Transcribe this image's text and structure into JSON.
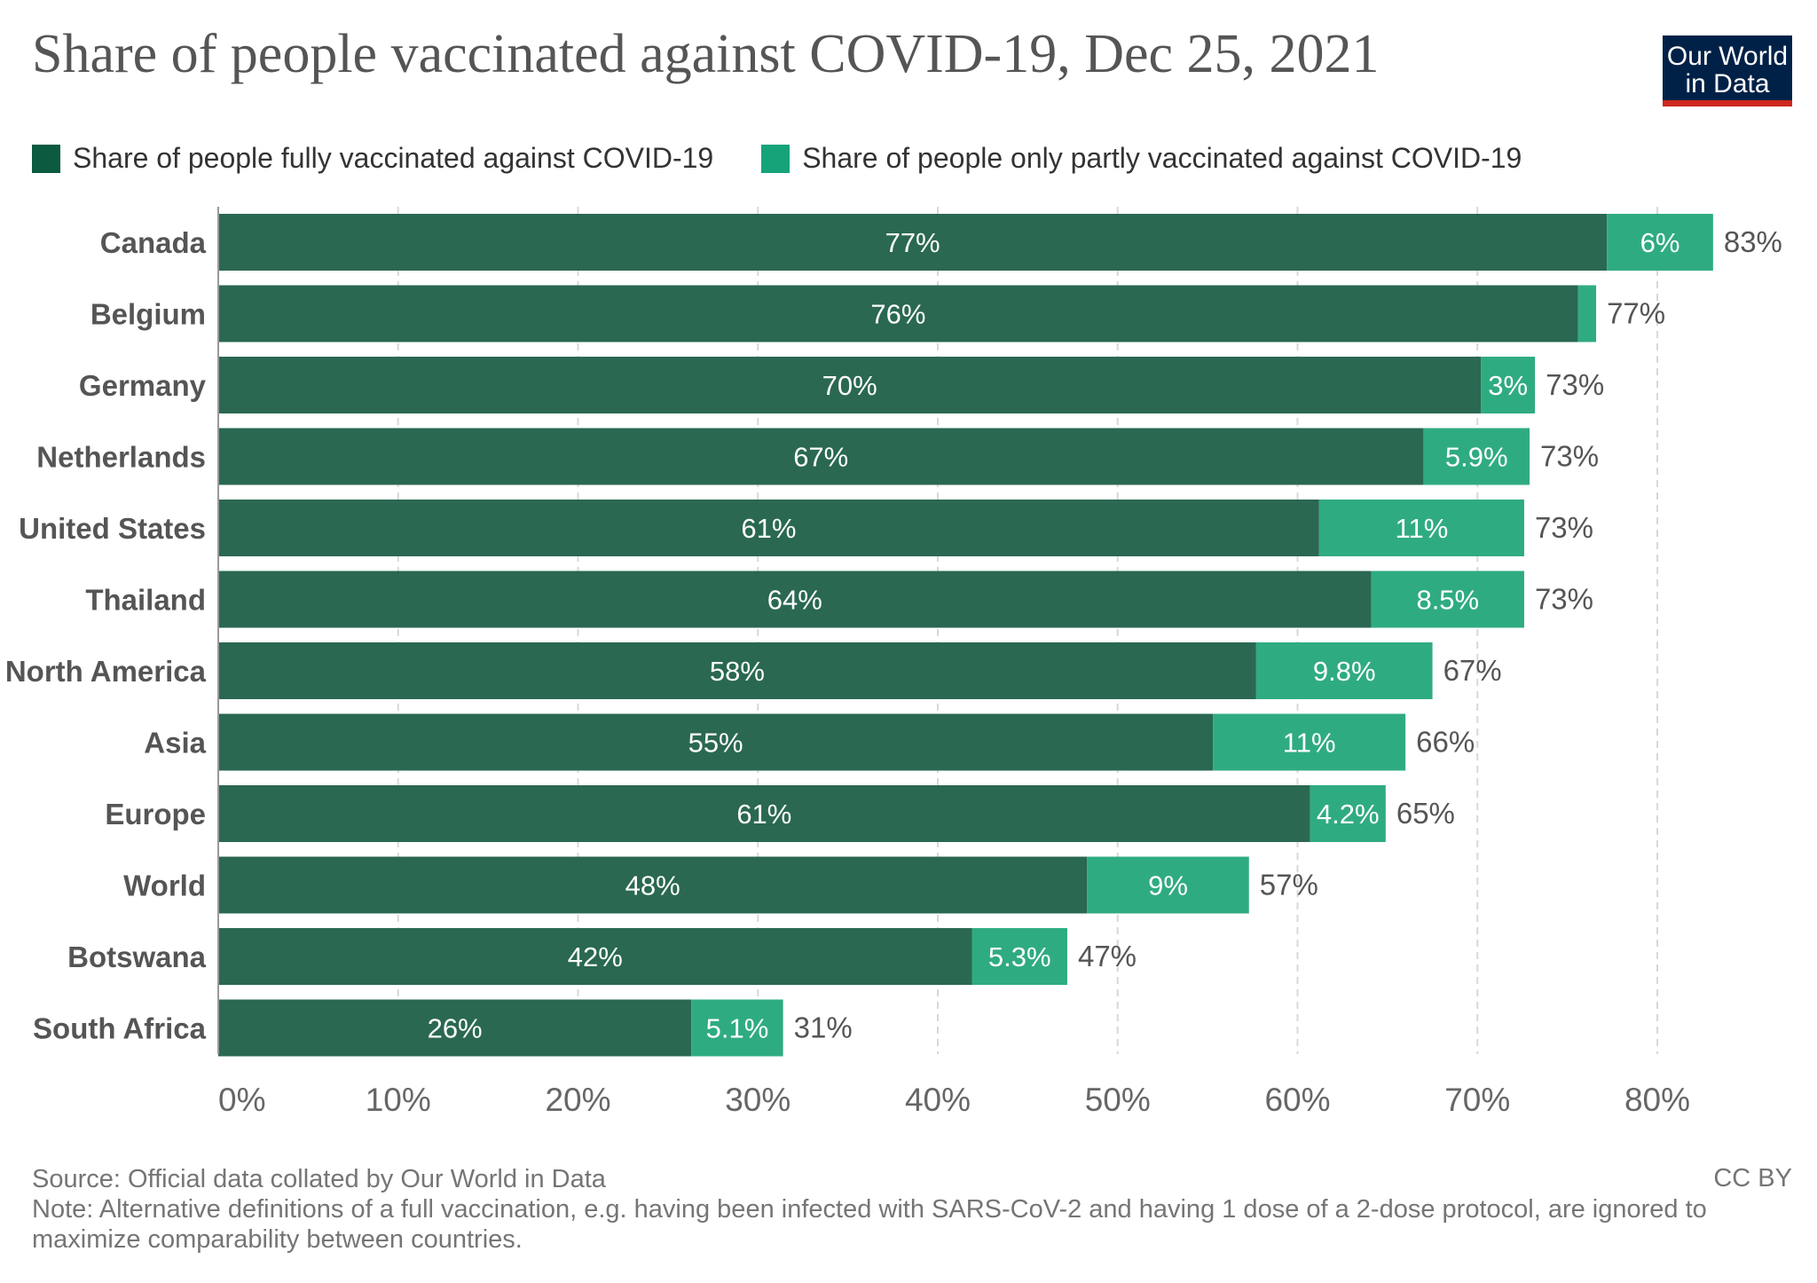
{
  "header": {
    "title": "Share of people vaccinated against COVID-19, Dec 25, 2021",
    "logo_line1": "Our World",
    "logo_line2": "in Data"
  },
  "colors": {
    "fully": "#2a6851",
    "partly": "#2fab82",
    "fully_swatch": "#0c5a3f",
    "partly_swatch": "#16a37a",
    "grid": "#d8d8d8",
    "axis_text": "#666666"
  },
  "chart_data": {
    "type": "bar",
    "orientation": "horizontal",
    "stacked": true,
    "categories": [
      "Canada",
      "Belgium",
      "Germany",
      "Netherlands",
      "United States",
      "Thailand",
      "North America",
      "Asia",
      "Europe",
      "World",
      "Botswana",
      "South Africa"
    ],
    "series": [
      {
        "name": "Share of people fully vaccinated against COVID-19",
        "values": [
          77.2,
          75.6,
          70.2,
          67.0,
          61.2,
          64.1,
          57.7,
          55.3,
          60.7,
          48.3,
          41.9,
          26.3
        ],
        "labels": [
          "77%",
          "76%",
          "70%",
          "67%",
          "61%",
          "64%",
          "58%",
          "55%",
          "61%",
          "48%",
          "42%",
          "26%"
        ]
      },
      {
        "name": "Share of people only partly vaccinated against COVID-19",
        "values": [
          5.9,
          1.0,
          3.0,
          5.9,
          11.4,
          8.5,
          9.8,
          10.7,
          4.2,
          9.0,
          5.3,
          5.1
        ],
        "labels": [
          "6%",
          "",
          "3%",
          "5.9%",
          "11%",
          "8.5%",
          "9.8%",
          "11%",
          "4.2%",
          "9%",
          "5.3%",
          "5.1%"
        ]
      }
    ],
    "totals": [
      "83%",
      "77%",
      "73%",
      "73%",
      "73%",
      "73%",
      "67%",
      "66%",
      "65%",
      "57%",
      "47%",
      "31%"
    ],
    "x_ticks": [
      "0%",
      "10%",
      "20%",
      "30%",
      "40%",
      "50%",
      "60%",
      "70%",
      "80%"
    ],
    "xlim": [
      0,
      80
    ],
    "grid": true,
    "legend_position": "top-left"
  },
  "footer": {
    "source": "Source: Official data collated by Our World in Data",
    "note": "Note: Alternative definitions of a full vaccination, e.g. having been infected with SARS-CoV-2 and having 1 dose of a 2-dose protocol, are ignored to maximize comparability between countries.",
    "license": "CC BY"
  }
}
